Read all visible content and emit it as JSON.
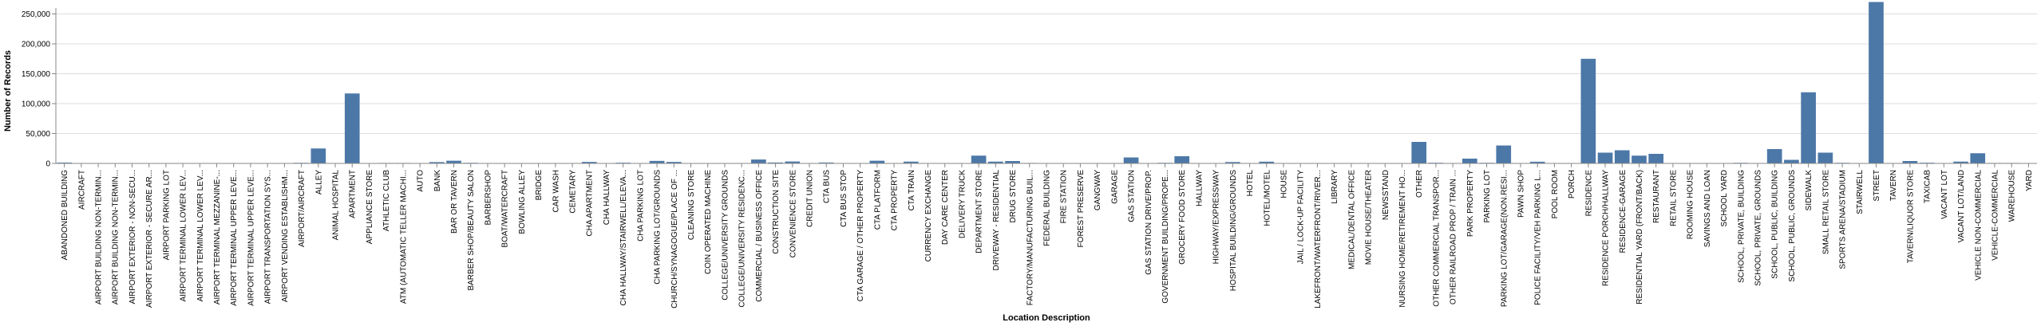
{
  "chart_data": {
    "type": "bar",
    "xlabel": "Location Description",
    "ylabel": "Number of Records",
    "ylim": [
      0,
      260000
    ],
    "yticks": [
      0,
      50000,
      100000,
      150000,
      200000,
      250000
    ],
    "ytick_labels": [
      "0",
      "50,000",
      "100,000",
      "150,000",
      "200,000",
      "250,000"
    ],
    "grid": true,
    "bar_color": "#4c78a8",
    "categories": [
      "ABANDONED BUILDING",
      "AIRCRAFT",
      "AIRPORT BUILDING NON-TERMIN...",
      "AIRPORT BUILDING NON-TERMIN...",
      "AIRPORT EXTERIOR - NON-SECU...",
      "AIRPORT EXTERIOR - SECURE AR...",
      "AIRPORT PARKING LOT",
      "AIRPORT TERMINAL LOWER LEV...",
      "AIRPORT TERMINAL LOWER LEV...",
      "AIRPORT TERMINAL MEZZANINE-...",
      "AIRPORT TERMINAL UPPER LEVE...",
      "AIRPORT TERMINAL UPPER LEVE...",
      "AIRPORT TRANSPORTATION SYS...",
      "AIRPORT VENDING ESTABLISHM...",
      "AIRPORT/AIRCRAFT",
      "ALLEY",
      "ANIMAL HOSPITAL",
      "APARTMENT",
      "APPLIANCE STORE",
      "ATHLETIC CLUB",
      "ATM (AUTOMATIC TELLER MACHI...",
      "AUTO",
      "BANK",
      "BAR OR TAVERN",
      "BARBER SHOP/BEAUTY SALON",
      "BARBERSHOP",
      "BOAT/WATERCRAFT",
      "BOWLING ALLEY",
      "BRIDGE",
      "CAR WASH",
      "CEMETARY",
      "CHA APARTMENT",
      "CHA HALLWAY",
      "CHA HALLWAY/STAIRWELL/ELEVA...",
      "CHA PARKING LOT",
      "CHA PARKING LOT/GROUNDS",
      "CHURCH/SYNAGOGUE/PLACE OF ...",
      "CLEANING STORE",
      "COIN OPERATED MACHINE",
      "COLLEGE/UNIVERSITY GROUNDS",
      "COLLEGE/UNIVERSITY RESIDENC...",
      "COMMERCIAL / BUSINESS OFFICE",
      "CONSTRUCTION SITE",
      "CONVENIENCE STORE",
      "CREDIT UNION",
      "CTA BUS",
      "CTA BUS STOP",
      "CTA GARAGE / OTHER PROPERTY",
      "CTA PLATFORM",
      "CTA PROPERTY",
      "CTA TRAIN",
      "CURRENCY EXCHANGE",
      "DAY CARE CENTER",
      "DELIVERY TRUCK",
      "DEPARTMENT STORE",
      "DRIVEWAY - RESIDENTIAL",
      "DRUG STORE",
      "FACTORY/MANUFACTURING BUIL...",
      "FEDERAL BUILDING",
      "FIRE STATION",
      "FOREST PRESERVE",
      "GANGWAY",
      "GARAGE",
      "GAS STATION",
      "GAS STATION DRIVE/PROP.",
      "GOVERNMENT BUILDING/PROPE...",
      "GROCERY FOOD STORE",
      "HALLWAY",
      "HIGHWAY/EXPRESSWAY",
      "HOSPITAL BUILDING/GROUNDS",
      "HOTEL",
      "HOTEL/MOTEL",
      "HOUSE",
      "JAIL / LOCK-UP FACILITY",
      "LAKEFRONT/WATERFRONT/RIVER...",
      "LIBRARY",
      "MEDICAL/DENTAL OFFICE",
      "MOVIE HOUSE/THEATER",
      "NEWSSTAND",
      "NURSING HOME/RETIREMENT HO...",
      "OTHER",
      "OTHER COMMERCIAL TRANSPOR...",
      "OTHER RAILROAD PROP / TRAIN ...",
      "PARK PROPERTY",
      "PARKING LOT",
      "PARKING LOT/GARAGE(NON.RESI...",
      "PAWN SHOP",
      "POLICE FACILITY/VEH PARKING L...",
      "POOL ROOM",
      "PORCH",
      "RESIDENCE",
      "RESIDENCE PORCH/HALLWAY",
      "RESIDENCE-GARAGE",
      "RESIDENTIAL YARD (FRONT/BACK)",
      "RESTAURANT",
      "RETAIL STORE",
      "ROOMING HOUSE",
      "SAVINGS AND LOAN",
      "SCHOOL YARD",
      "SCHOOL, PRIVATE, BUILDING",
      "SCHOOL, PRIVATE, GROUNDS",
      "SCHOOL, PUBLIC, BUILDING",
      "SCHOOL, PUBLIC, GROUNDS",
      "SIDEWALK",
      "SMALL RETAIL STORE",
      "SPORTS ARENA/STADIUM",
      "STAIRWELL",
      "STREET",
      "TAVERN",
      "TAVERN/LIQUOR STORE",
      "TAXICAB",
      "VACANT LOT",
      "VACANT LOT/LAND",
      "VEHICLE NON-COMMERCIAL",
      "VEHICLE-COMMERCIAL",
      "WAREHOUSE",
      "YARD"
    ],
    "values": [
      1400,
      50,
      50,
      50,
      50,
      50,
      100,
      50,
      50,
      50,
      50,
      50,
      50,
      50,
      1000,
      25000,
      300,
      117000,
      300,
      800,
      800,
      300,
      2200,
      4500,
      1000,
      300,
      100,
      100,
      100,
      100,
      100,
      2500,
      400,
      1200,
      300,
      4200,
      2500,
      300,
      100,
      500,
      400,
      6500,
      1500,
      3200,
      300,
      1500,
      300,
      300,
      4500,
      600,
      3000,
      600,
      300,
      200,
      13000,
      3000,
      4000,
      800,
      300,
      200,
      200,
      200,
      500,
      10000,
      500,
      1000,
      12000,
      400,
      500,
      2300,
      100,
      2900,
      400,
      400,
      200,
      600,
      400,
      500,
      200,
      400,
      36000,
      1100,
      400,
      8000,
      1000,
      30000,
      200,
      2800,
      200,
      400,
      175000,
      18000,
      22000,
      13000,
      16000,
      300,
      200,
      100,
      600,
      1000,
      300,
      24000,
      6000,
      119000,
      18000,
      1000,
      200,
      270000,
      700,
      4000,
      1200,
      400,
      3000,
      17000,
      800,
      800,
      300
    ]
  }
}
